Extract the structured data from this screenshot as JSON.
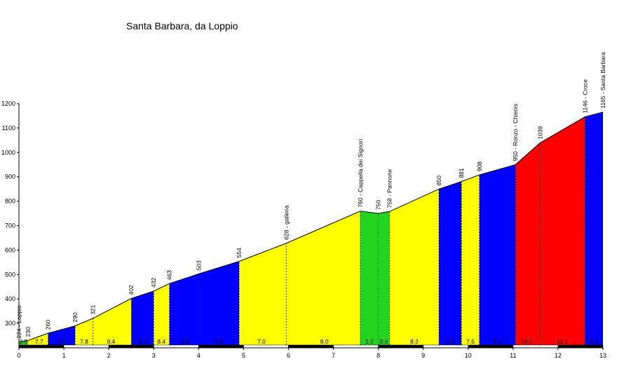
{
  "chart_data": {
    "type": "area",
    "title": "Santa Barbara, da Loppio",
    "xlabel": "",
    "ylabel": "",
    "xlim": [
      0,
      13
    ],
    "ylim": [
      200,
      1200
    ],
    "x_ticks": [
      0,
      1,
      2,
      3,
      4,
      5,
      6,
      7,
      8,
      9,
      10,
      11,
      12,
      13
    ],
    "y_ticks": [
      300,
      400,
      500,
      600,
      700,
      800,
      900,
      1000,
      1100,
      1200
    ],
    "profile": [
      {
        "x": 0.0,
        "y": 224
      },
      {
        "x": 0.2,
        "y": 230
      },
      {
        "x": 0.65,
        "y": 260
      },
      {
        "x": 1.25,
        "y": 290
      },
      {
        "x": 1.65,
        "y": 321
      },
      {
        "x": 2.5,
        "y": 402
      },
      {
        "x": 3.0,
        "y": 432
      },
      {
        "x": 3.35,
        "y": 463
      },
      {
        "x": 4.0,
        "y": 503
      },
      {
        "x": 4.9,
        "y": 554
      },
      {
        "x": 5.95,
        "y": 628
      },
      {
        "x": 7.6,
        "y": 760
      },
      {
        "x": 8.0,
        "y": 750
      },
      {
        "x": 8.25,
        "y": 758
      },
      {
        "x": 9.35,
        "y": 850
      },
      {
        "x": 9.85,
        "y": 881
      },
      {
        "x": 10.25,
        "y": 908
      },
      {
        "x": 11.05,
        "y": 950
      },
      {
        "x": 11.6,
        "y": 1039
      },
      {
        "x": 12.6,
        "y": 1146
      },
      {
        "x": 13.0,
        "y": 1165
      }
    ],
    "segments": [
      {
        "from": 0.0,
        "to": 0.2,
        "gradient": "3.0",
        "color": "#21d521"
      },
      {
        "from": 0.2,
        "to": 0.65,
        "gradient": "7.7",
        "color": "#ffff00"
      },
      {
        "from": 0.65,
        "to": 1.25,
        "gradient": "5.2",
        "color": "#0000ff"
      },
      {
        "from": 1.25,
        "to": 2.5,
        "gradient": "7.8",
        "color": "#ffff00"
      },
      {
        "from": 2.5,
        "to": 3.0,
        "gradient": "6.2",
        "color": "#0000ff"
      },
      {
        "from": 3.0,
        "to": 3.35,
        "gradient": "8.4",
        "color": "#ffff00"
      },
      {
        "from": 3.35,
        "to": 4.9,
        "gradient": "6.5",
        "color": "#0000ff"
      },
      {
        "from": 4.9,
        "to": 7.6,
        "gradient": "7.0",
        "color": "#ffff00"
      },
      {
        "from": 7.6,
        "to": 8.25,
        "gradient": "2.3",
        "color": "#21d521"
      },
      {
        "from": 8.25,
        "to": 9.35,
        "gradient": "8.3",
        "color": "#ffff00"
      },
      {
        "from": 9.35,
        "to": 9.85,
        "gradient": "6.2",
        "color": "#0000ff"
      },
      {
        "from": 9.85,
        "to": 10.25,
        "gradient": "7.5",
        "color": "#ffff00"
      },
      {
        "from": 10.25,
        "to": 11.05,
        "gradient": "5.1",
        "color": "#0000ff"
      },
      {
        "from": 11.05,
        "to": 12.6,
        "gradient": "14.6",
        "color": "#ff0000"
      },
      {
        "from": 12.6,
        "to": 13.0,
        "gradient": "5.1",
        "color": "#0000ff"
      }
    ],
    "gradient_labels": [
      {
        "x": 0.1,
        "text": "3.0"
      },
      {
        "x": 0.45,
        "text": "7.7"
      },
      {
        "x": 0.95,
        "text": "5.2"
      },
      {
        "x": 1.45,
        "text": "7.8"
      },
      {
        "x": 2.05,
        "text": "9.4"
      },
      {
        "x": 2.75,
        "text": "6.2"
      },
      {
        "x": 3.17,
        "text": "8.4"
      },
      {
        "x": 3.7,
        "text": "6.5"
      },
      {
        "x": 4.45,
        "text": "5.5"
      },
      {
        "x": 5.4,
        "text": "7.0"
      },
      {
        "x": 6.8,
        "text": "8.0"
      },
      {
        "x": 7.8,
        "text": "2.3"
      },
      {
        "x": 8.12,
        "text": "3.6"
      },
      {
        "x": 8.8,
        "text": "8.3"
      },
      {
        "x": 9.6,
        "text": "6.2"
      },
      {
        "x": 10.05,
        "text": "7.5"
      },
      {
        "x": 10.65,
        "text": "5.1"
      },
      {
        "x": 11.3,
        "text": "14.6"
      },
      {
        "x": 12.1,
        "text": "11.1"
      },
      {
        "x": 12.8,
        "text": "5.1"
      }
    ],
    "elevation_labels": [
      {
        "x": 0.0,
        "y": 224,
        "text": "224 - Loppio"
      },
      {
        "x": 0.2,
        "y": 230,
        "text": "230"
      },
      {
        "x": 0.65,
        "y": 260,
        "text": "260"
      },
      {
        "x": 1.25,
        "y": 290,
        "text": "290"
      },
      {
        "x": 1.65,
        "y": 321,
        "text": "321"
      },
      {
        "x": 2.5,
        "y": 402,
        "text": "402"
      },
      {
        "x": 3.0,
        "y": 432,
        "text": "432"
      },
      {
        "x": 3.35,
        "y": 463,
        "text": "463"
      },
      {
        "x": 4.0,
        "y": 503,
        "text": "503"
      },
      {
        "x": 4.9,
        "y": 554,
        "text": "554"
      },
      {
        "x": 5.95,
        "y": 628,
        "text": "628 - galleria"
      },
      {
        "x": 7.6,
        "y": 760,
        "text": "760 - Cappella dei Signori"
      },
      {
        "x": 8.0,
        "y": 750,
        "text": "750"
      },
      {
        "x": 8.25,
        "y": 758,
        "text": "758 - Pannone"
      },
      {
        "x": 9.35,
        "y": 850,
        "text": "850"
      },
      {
        "x": 9.85,
        "y": 881,
        "text": "881"
      },
      {
        "x": 10.25,
        "y": 908,
        "text": "908"
      },
      {
        "x": 11.05,
        "y": 950,
        "text": "950 - Ronzo - Chienis"
      },
      {
        "x": 11.6,
        "y": 1039,
        "text": "1039"
      },
      {
        "x": 12.6,
        "y": 1146,
        "text": "1146 - Croce"
      },
      {
        "x": 13.0,
        "y": 1165,
        "text": "1165 - Santa Barbara"
      }
    ],
    "dashed_markers": [
      0.65,
      1.25,
      1.65,
      3.0,
      3.35,
      4.0,
      4.9,
      5.95,
      7.6,
      8.0,
      8.25,
      9.35,
      9.85,
      10.25,
      11.05,
      11.6,
      12.6
    ],
    "grid": false,
    "legend": "none"
  },
  "colors": {
    "green": "#21d521",
    "yellow": "#ffff00",
    "blue": "#0000ff",
    "red": "#ff0000",
    "outline": "#000000"
  }
}
